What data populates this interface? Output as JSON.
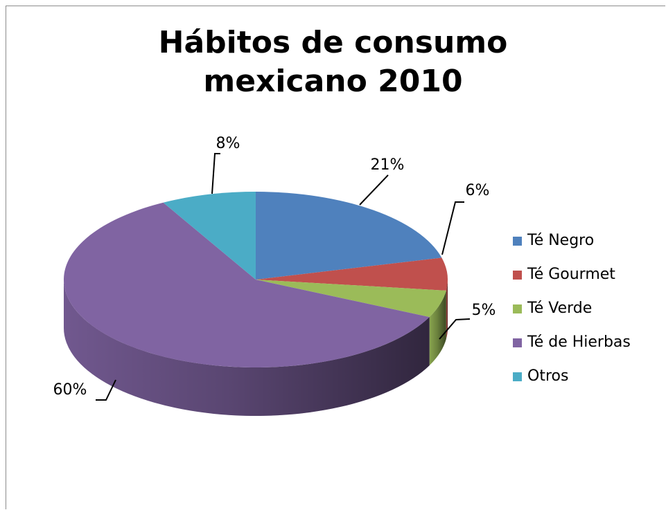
{
  "chart_data": {
    "type": "pie",
    "style": "3d",
    "title": [
      "Hábitos de consumo",
      "mexicano 2010"
    ],
    "categories": [
      "Té Negro",
      "Té Gourmet",
      "Té Verde",
      "Té de Hierbas",
      "Otros"
    ],
    "values": [
      21,
      6,
      5,
      60,
      8
    ],
    "labels": [
      "21%",
      "6%",
      "5%",
      "60%",
      "8%"
    ],
    "colors": [
      "#4f81bd",
      "#c0504d",
      "#9bbb59",
      "#8064a2",
      "#4bacc6"
    ],
    "legend_position": "right"
  }
}
